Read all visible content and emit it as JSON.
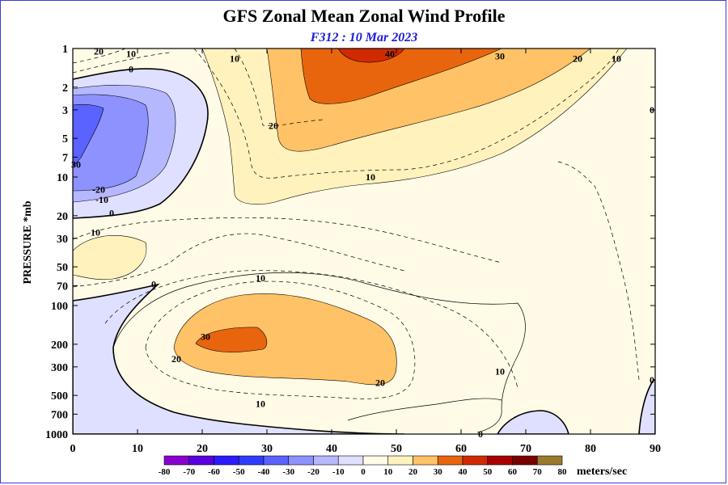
{
  "chart_data": {
    "type": "contour",
    "title": "GFS Zonal Mean Zonal Wind Profile",
    "subtitle": "F312 : 10 Mar 2023",
    "xlabel": "",
    "ylabel": "PRESSURE *mb",
    "x_ticks": [
      0,
      10,
      20,
      30,
      40,
      50,
      60,
      70,
      80,
      90
    ],
    "y_ticks": [
      "1",
      "2",
      "3",
      "5",
      "7",
      "10",
      "20",
      "30",
      "50",
      "70",
      "100",
      "200",
      "300",
      "500",
      "700",
      "1000"
    ],
    "y_tick_values": [
      1,
      2,
      3,
      5,
      7,
      10,
      20,
      30,
      50,
      70,
      100,
      200,
      300,
      500,
      700,
      1000
    ],
    "y_scale": "log",
    "xlim": [
      0,
      90
    ],
    "ylim": [
      1000,
      1
    ],
    "colorbar": {
      "levels": [
        "-80",
        "-70",
        "-60",
        "-50",
        "-40",
        "-30",
        "-20",
        "-10",
        "0",
        "10",
        "20",
        "30",
        "40",
        "50",
        "60",
        "70",
        "80"
      ],
      "colors": [
        "#8a00cc",
        "#5a00e0",
        "#2c1bff",
        "#2f3cff",
        "#5a62ff",
        "#8e92ff",
        "#b5b8ff",
        "#dfe0ff",
        "#fffbe6",
        "#fff2bd",
        "#ffc266",
        "#e8650e",
        "#d22a00",
        "#aa0000",
        "#7a0000",
        "#9b7a2c"
      ],
      "units": "meters/sec"
    },
    "contour_labels": [
      {
        "text": "20",
        "lat": 4,
        "p": 1.05
      },
      {
        "text": "10",
        "lat": 9,
        "p": 1.1
      },
      {
        "text": "0",
        "lat": 9,
        "p": 1.45
      },
      {
        "text": "10",
        "lat": 25,
        "p": 1.2
      },
      {
        "text": "40",
        "lat": 49,
        "p": 1.1
      },
      {
        "text": "30",
        "lat": 66,
        "p": 1.15
      },
      {
        "text": "20",
        "lat": 78,
        "p": 1.2
      },
      {
        "text": "10",
        "lat": 84,
        "p": 1.2
      },
      {
        "text": "0",
        "lat": 89.5,
        "p": 3
      },
      {
        "text": "20",
        "lat": 31,
        "p": 4
      },
      {
        "text": "10",
        "lat": 46,
        "p": 10
      },
      {
        "text": "30",
        "lat": 0.5,
        "p": 8
      },
      {
        "text": "-20",
        "lat": 4,
        "p": 12.5
      },
      {
        "text": "-10",
        "lat": 4.5,
        "p": 15
      },
      {
        "text": "0",
        "lat": 6,
        "p": 19
      },
      {
        "text": "10",
        "lat": 3.5,
        "p": 27
      },
      {
        "text": "0",
        "lat": 12.5,
        "p": 68
      },
      {
        "text": "10",
        "lat": 29,
        "p": 61
      },
      {
        "text": "30",
        "lat": 20.5,
        "p": 175
      },
      {
        "text": "20",
        "lat": 16,
        "p": 260
      },
      {
        "text": "20",
        "lat": 47.5,
        "p": 400
      },
      {
        "text": "10",
        "lat": 29,
        "p": 580
      },
      {
        "text": "10",
        "lat": 66,
        "p": 325
      },
      {
        "text": "0",
        "lat": 63,
        "p": 1000
      },
      {
        "text": "0",
        "lat": 89.5,
        "p": 380
      }
    ]
  }
}
